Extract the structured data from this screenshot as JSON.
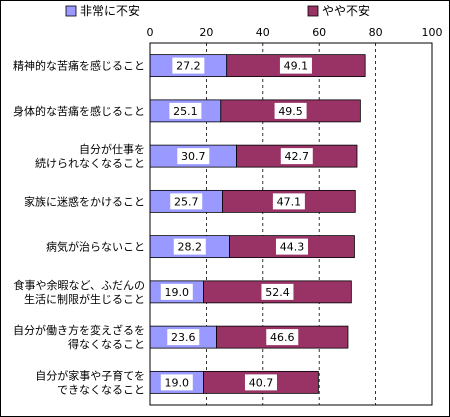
{
  "chart_data": {
    "type": "bar",
    "orientation": "horizontal",
    "stacked": true,
    "grid": true,
    "legend_position": "top",
    "xlim": [
      0,
      100
    ],
    "xticks": [
      0,
      20,
      40,
      60,
      80,
      100
    ],
    "categories": [
      [
        "精神的な苦痛を感じること"
      ],
      [
        "身体的な苦痛を感じること"
      ],
      [
        "自分が仕事を",
        "続けられなくなること"
      ],
      [
        "家族に迷惑をかけること"
      ],
      [
        "病気が治らないこと"
      ],
      [
        "食事や余暇など、ふだんの",
        "生活に制限が生じること"
      ],
      [
        "自分が働き方を変えざるを",
        "得なくなること"
      ],
      [
        "自分が家事や子育てを",
        "できなくなること"
      ]
    ],
    "series": [
      {
        "name": "非常に不安",
        "color": "#9999ff",
        "values": [
          27.2,
          25.1,
          30.7,
          25.7,
          28.2,
          19.0,
          23.6,
          19.0
        ],
        "labels": [
          "27.2",
          "25.1",
          "30.7",
          "25.7",
          "28.2",
          "19.0",
          "23.6",
          "19.0"
        ]
      },
      {
        "name": "やや不安",
        "color": "#993366",
        "values": [
          49.1,
          49.5,
          42.7,
          47.1,
          44.3,
          52.4,
          46.6,
          40.7
        ],
        "labels": [
          "49.1",
          "49.5",
          "42.7",
          "47.1",
          "44.3",
          "52.4",
          "46.6",
          "40.7"
        ]
      }
    ]
  }
}
